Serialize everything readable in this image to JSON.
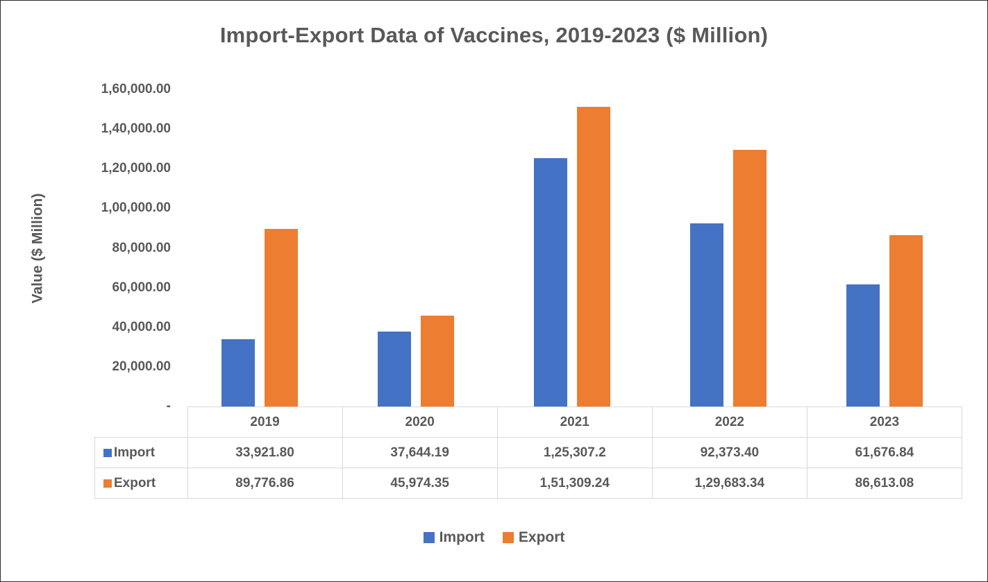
{
  "chart_data": {
    "type": "bar",
    "title": "Import-Export Data of Vaccines, 2019-2023 ($ Million)",
    "xlabel": "",
    "ylabel": "Value ($ Million)",
    "categories": [
      "2019",
      "2020",
      "2021",
      "2022",
      "2023"
    ],
    "series": [
      {
        "name": "Import",
        "color": "#4472C4",
        "values": [
          33921.8,
          37644.19,
          125307.2,
          92373.4,
          61676.84
        ],
        "labels": [
          "33,921.80",
          "37,644.19",
          "1,25,307.2",
          "92,373.40",
          "61,676.84"
        ]
      },
      {
        "name": "Export",
        "color": "#ED7D31",
        "values": [
          89776.86,
          45974.35,
          151309.24,
          129683.34,
          86613.08
        ],
        "labels": [
          "89,776.86",
          "45,974.35",
          "1,51,309.24",
          "1,29,683.34",
          "86,613.08"
        ]
      }
    ],
    "ylim": [
      0,
      160000
    ],
    "y_ticks": [
      "1,60,000.00",
      "1,40,000.00",
      "1,20,000.00",
      "1,00,000.00",
      "80,000.00",
      "60,000.00",
      "40,000.00",
      "20,000.00",
      "-"
    ],
    "grid": false,
    "legend_position": "bottom",
    "data_table_shown": true,
    "colors": {
      "title_text": "#595959",
      "axis_text": "#595959",
      "table_border": "#d9d9d9",
      "import_series": "#4472C4",
      "export_series": "#ED7D31"
    }
  }
}
